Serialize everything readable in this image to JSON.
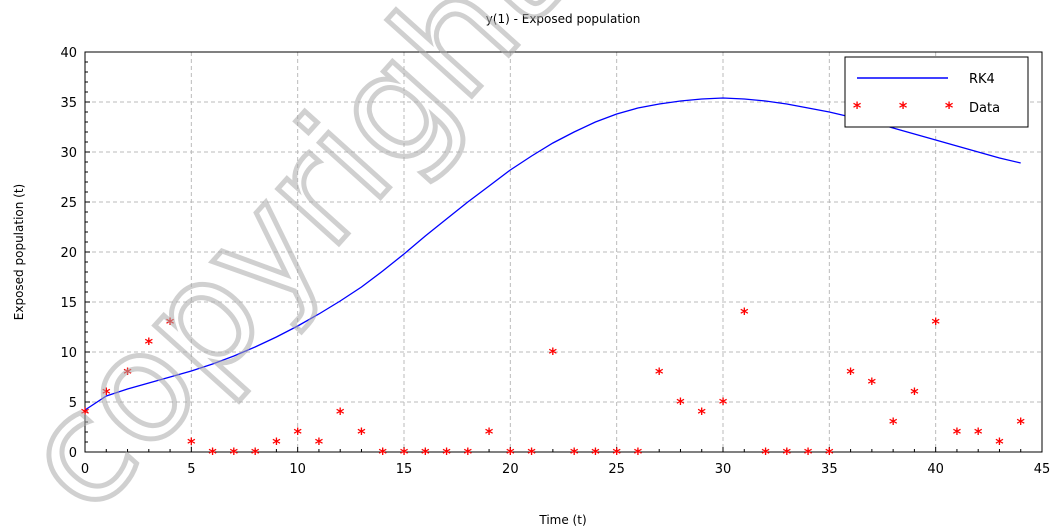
{
  "chart_data": {
    "type": "line",
    "title": "y(1) - Exposed population",
    "xlabel": "Time (t)",
    "ylabel": "Exposed population (t)",
    "xlim": [
      0,
      45
    ],
    "ylim": [
      0,
      40
    ],
    "xticks": [
      0,
      5,
      10,
      15,
      20,
      25,
      30,
      35,
      40,
      45
    ],
    "yticks": [
      0,
      5,
      10,
      15,
      20,
      25,
      30,
      35,
      40
    ],
    "grid": true,
    "legend_position": "top-right",
    "series": [
      {
        "name": "RK4",
        "kind": "line",
        "color": "#0000ff",
        "x": [
          0,
          1,
          2,
          3,
          4,
          5,
          6,
          7,
          8,
          9,
          10,
          11,
          12,
          13,
          14,
          15,
          16,
          17,
          18,
          19,
          20,
          21,
          22,
          23,
          24,
          25,
          26,
          27,
          28,
          29,
          30,
          31,
          32,
          33,
          34,
          35,
          36,
          37,
          38,
          39,
          40,
          41,
          42,
          43,
          44
        ],
        "y": [
          4.2,
          5.6,
          6.3,
          6.9,
          7.5,
          8.1,
          8.8,
          9.6,
          10.5,
          11.5,
          12.6,
          13.8,
          15.1,
          16.5,
          18.1,
          19.8,
          21.6,
          23.3,
          25.0,
          26.6,
          28.2,
          29.6,
          30.9,
          32.0,
          33.0,
          33.8,
          34.4,
          34.8,
          35.1,
          35.3,
          35.4,
          35.3,
          35.1,
          34.8,
          34.4,
          34.0,
          33.5,
          33.0,
          32.4,
          31.8,
          31.2,
          30.6,
          30.0,
          29.4,
          28.9
        ]
      },
      {
        "name": "Data",
        "kind": "scatter",
        "color": "#ff0000",
        "marker": "*",
        "x": [
          0,
          1,
          2,
          3,
          4,
          5,
          6,
          7,
          8,
          9,
          10,
          11,
          12,
          13,
          14,
          15,
          16,
          17,
          18,
          19,
          20,
          21,
          22,
          23,
          24,
          25,
          26,
          27,
          28,
          29,
          30,
          31,
          32,
          33,
          34,
          35,
          36,
          37,
          38,
          39,
          40,
          41,
          42,
          43,
          44
        ],
        "y": [
          4,
          6,
          8,
          11,
          13,
          1,
          0,
          0,
          0,
          1,
          2,
          1,
          4,
          2,
          0,
          0,
          0,
          0,
          0,
          2,
          0,
          0,
          10,
          0,
          0,
          0,
          0,
          8,
          5,
          4,
          5,
          14,
          0,
          0,
          0,
          0,
          8,
          7,
          3,
          6,
          13,
          2,
          2,
          1,
          3
        ]
      }
    ]
  },
  "watermark": "copyright@"
}
